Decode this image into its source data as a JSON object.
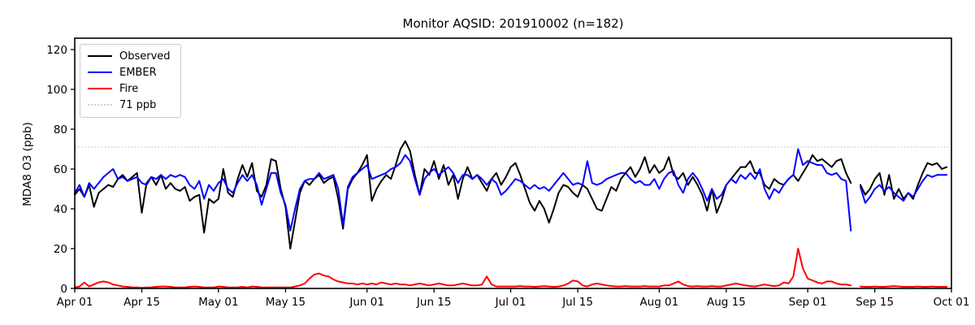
{
  "chart_data": {
    "type": "line",
    "title": "Monitor AQSID: 201910002 (n=182)",
    "xlabel": "",
    "ylabel": "MDA8 O3 (ppb)",
    "n": 182,
    "x_mode": "daily",
    "x_start": "Apr 01",
    "x_end": "Sep 30",
    "x_total_days": 183,
    "missing_dates": [
      "Sep 11"
    ],
    "grid": false,
    "legend_position": "upper-left",
    "ylim": [
      0,
      125
    ],
    "y_ticks": [
      0,
      20,
      40,
      60,
      80,
      100,
      120
    ],
    "x_ticks": [
      {
        "label": "Apr 01",
        "day": 0
      },
      {
        "label": "Apr 15",
        "day": 14
      },
      {
        "label": "May 01",
        "day": 30
      },
      {
        "label": "May 15",
        "day": 44
      },
      {
        "label": "Jun 01",
        "day": 61
      },
      {
        "label": "Jun 15",
        "day": 75
      },
      {
        "label": "Jul 01",
        "day": 91
      },
      {
        "label": "Jul 15",
        "day": 105
      },
      {
        "label": "Aug 01",
        "day": 122
      },
      {
        "label": "Aug 15",
        "day": 136
      },
      {
        "label": "Sep 01",
        "day": 153
      },
      {
        "label": "Sep 15",
        "day": 167
      },
      {
        "label": "Oct 01",
        "day": 183
      }
    ],
    "threshold": {
      "label": "71 ppb",
      "value": 71,
      "color": "#cfcfcf",
      "style": "dotted"
    },
    "legend": [
      {
        "label": "Observed",
        "color": "#000000",
        "style": "solid"
      },
      {
        "label": "EMBER",
        "color": "#0000ff",
        "style": "solid"
      },
      {
        "label": "Fire",
        "color": "#ff0000",
        "style": "solid"
      },
      {
        "label": "71 ppb",
        "color": "#cfcfcf",
        "style": "dotted"
      }
    ],
    "series": [
      {
        "name": "Observed",
        "color": "#000000",
        "values": [
          47,
          50,
          46,
          52,
          41,
          48,
          50,
          52,
          51,
          55,
          57,
          54,
          56,
          58,
          38,
          53,
          56,
          52,
          57,
          50,
          53,
          50,
          49,
          51,
          44,
          46,
          47,
          28,
          45,
          43,
          45,
          60,
          48,
          46,
          55,
          62,
          56,
          63,
          49,
          46,
          52,
          65,
          64,
          50,
          41,
          20,
          34,
          48,
          54,
          52,
          55,
          57,
          53,
          55,
          56,
          45,
          30,
          50,
          55,
          58,
          62,
          67,
          44,
          50,
          54,
          57,
          55,
          62,
          70,
          74,
          69,
          57,
          47,
          60,
          57,
          64,
          55,
          62,
          52,
          57,
          45,
          55,
          61,
          55,
          57,
          53,
          49,
          55,
          58,
          52,
          56,
          61,
          63,
          57,
          50,
          43,
          39,
          44,
          40,
          33,
          40,
          48,
          52,
          51,
          48,
          46,
          52,
          50,
          45,
          40,
          39,
          45,
          51,
          49,
          55,
          58,
          61,
          56,
          60,
          66,
          58,
          62,
          58,
          60,
          66,
          57,
          55,
          58,
          52,
          56,
          52,
          47,
          39,
          50,
          38,
          44,
          52,
          55,
          58,
          61,
          61,
          64,
          58,
          58,
          52,
          50,
          55,
          53,
          52,
          55,
          57,
          54,
          58,
          62,
          67,
          64,
          65,
          63,
          61,
          64,
          65,
          58,
          53,
          null,
          52,
          47,
          50,
          55,
          58,
          47,
          57,
          45,
          50,
          45,
          48,
          45,
          52,
          58,
          63,
          62,
          63,
          60,
          61
        ]
      },
      {
        "name": "EMBER",
        "color": "#0000ff",
        "values": [
          48,
          52,
          46,
          53,
          50,
          53,
          56,
          58,
          60,
          55,
          56,
          54,
          55,
          56,
          53,
          52,
          56,
          55,
          57,
          55,
          57,
          56,
          57,
          56,
          52,
          50,
          54,
          45,
          52,
          49,
          53,
          55,
          50,
          48,
          53,
          57,
          54,
          57,
          52,
          42,
          50,
          58,
          58,
          48,
          42,
          29,
          40,
          50,
          54,
          55,
          55,
          58,
          55,
          56,
          57,
          50,
          32,
          51,
          56,
          58,
          60,
          62,
          55,
          56,
          57,
          58,
          60,
          61,
          63,
          67,
          64,
          55,
          47,
          55,
          58,
          60,
          57,
          59,
          61,
          58,
          53,
          57,
          57,
          55,
          57,
          55,
          52,
          55,
          53,
          47,
          49,
          52,
          55,
          54,
          52,
          50,
          52,
          50,
          51,
          49,
          52,
          55,
          58,
          55,
          52,
          53,
          52,
          64,
          53,
          52,
          53,
          55,
          56,
          57,
          58,
          58,
          55,
          53,
          54,
          52,
          52,
          55,
          50,
          55,
          58,
          59,
          52,
          48,
          55,
          58,
          55,
          50,
          44,
          50,
          45,
          47,
          52,
          55,
          53,
          57,
          55,
          58,
          55,
          60,
          50,
          45,
          50,
          48,
          52,
          55,
          57,
          70,
          62,
          64,
          63,
          62,
          62,
          58,
          57,
          58,
          55,
          54,
          29,
          null,
          51,
          43,
          46,
          50,
          52,
          49,
          51,
          48,
          46,
          44,
          48,
          46,
          50,
          54,
          57,
          56,
          57,
          57,
          57
        ]
      },
      {
        "name": "Fire",
        "color": "#ff0000",
        "values": [
          0.5,
          1,
          3,
          1,
          2,
          3,
          3.5,
          3,
          2,
          1.5,
          1,
          0.8,
          0.5,
          0.5,
          0.3,
          0.5,
          0.5,
          0.8,
          1,
          1,
          0.8,
          0.5,
          0.5,
          0.5,
          0.8,
          1,
          0.8,
          0.5,
          0.5,
          0.5,
          1,
          0.8,
          0.5,
          0.5,
          0.5,
          0.8,
          0.5,
          1,
          0.8,
          0.5,
          0.5,
          0.5,
          0.5,
          0.5,
          0.5,
          0.5,
          1,
          1.5,
          2.5,
          5,
          7,
          7.5,
          6.5,
          6,
          4.5,
          3.5,
          3,
          2.5,
          2.5,
          2,
          2.5,
          2,
          2.5,
          2,
          3,
          2.5,
          2,
          2.5,
          2,
          2,
          1.5,
          2,
          2.5,
          2,
          1.5,
          2,
          2.5,
          2,
          1.5,
          1.5,
          2,
          2.5,
          2,
          1.5,
          1.5,
          2,
          6,
          2,
          1,
          1,
          1,
          1,
          1,
          1.2,
          1,
          1,
          0.8,
          1,
          1.2,
          1,
          0.8,
          1,
          1.5,
          2.5,
          4,
          3.5,
          1.5,
          1,
          2,
          2.5,
          2,
          1.5,
          1.2,
          1,
          1,
          1.2,
          1,
          1,
          1,
          1.2,
          1,
          1,
          1,
          1.5,
          1.5,
          2.5,
          3.5,
          2,
          1.2,
          1,
          1.2,
          1,
          1,
          1.2,
          1,
          1,
          1.5,
          2,
          2.5,
          2,
          1.5,
          1.2,
          1,
          1.5,
          2,
          1.5,
          1.2,
          1.5,
          3,
          2.5,
          6,
          20,
          10,
          5,
          4,
          3,
          2.5,
          3.5,
          3.5,
          2.5,
          2,
          2,
          1.5,
          null,
          1,
          0.8,
          0.8,
          1,
          0.8,
          0.8,
          1,
          1.2,
          1,
          0.8,
          0.8,
          0.8,
          1,
          0.8,
          0.8,
          1,
          0.8,
          0.8,
          0.8
        ]
      }
    ]
  }
}
